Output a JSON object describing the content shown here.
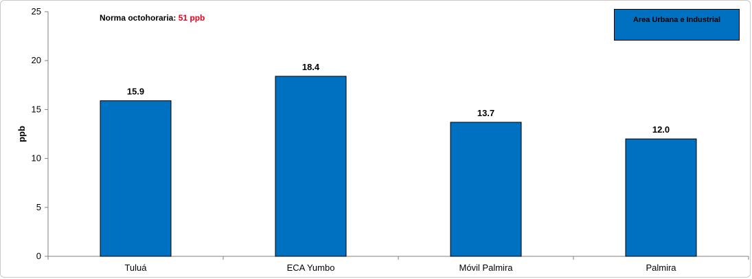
{
  "chart_data": {
    "type": "bar",
    "categories": [
      "Tuluá",
      "ECA Yumbo",
      "Móvil Palmira",
      "Palmira"
    ],
    "values": [
      15.9,
      18.4,
      13.7,
      12.0
    ],
    "value_labels": [
      "15.9",
      "18.4",
      "13.7",
      "12.0"
    ],
    "ylabel": "ppb",
    "xlabel": "",
    "ylim": [
      0,
      25
    ],
    "yticks": [
      0,
      5,
      10,
      15,
      20,
      25
    ],
    "grid": false,
    "bar_color": "#0070c0",
    "annotation": {
      "label": "Norma octohoraria:",
      "value": "51 ppb",
      "value_color": "#e8001c"
    },
    "legend": {
      "label": "Area Urbana e Industrial",
      "position": "top-right"
    }
  }
}
